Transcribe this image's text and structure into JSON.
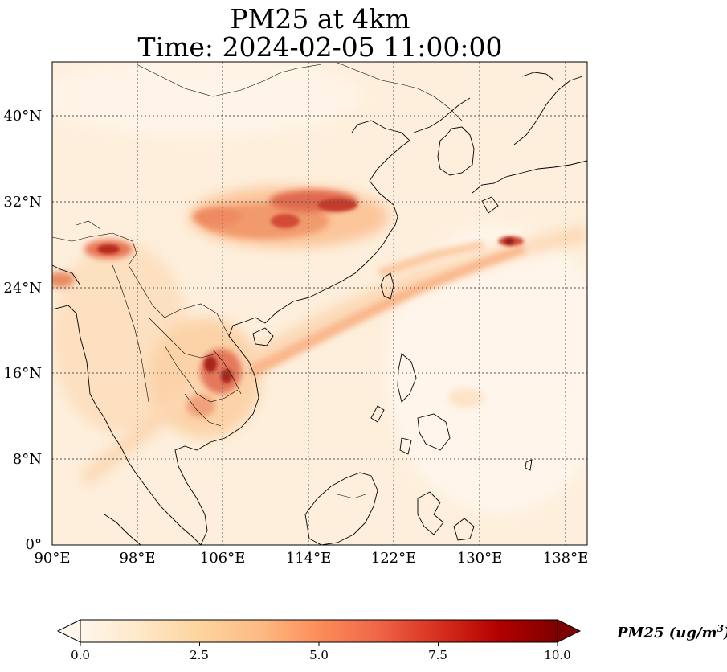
{
  "title": {
    "line1": "PM25 at 4km",
    "line2": "Time: 2024-02-05 11:00:00"
  },
  "map": {
    "lon_range": [
      90,
      140
    ],
    "lat_range": [
      0,
      45
    ],
    "lat_ticks": [
      "40°N",
      "32°N",
      "24°N",
      "16°N",
      "8°N",
      "0°"
    ],
    "lon_ticks": [
      "90°E",
      "98°E",
      "106°E",
      "114°E",
      "122°E",
      "130°E",
      "138°E"
    ],
    "gridlines": "dotted"
  },
  "colorbar": {
    "label": "PM25 (ug/m",
    "label_sup": "3",
    "label_close": ")",
    "ticks": [
      "0.0",
      "2.5",
      "5.0",
      "7.5",
      "10.0"
    ],
    "vmin": 0,
    "vmax": 10,
    "extend": "both",
    "cmap": "OrRd",
    "colors": [
      "#fff7ec",
      "#fee8c8",
      "#fdd49e",
      "#fdbb84",
      "#fc8d59",
      "#ef6548",
      "#d7301f",
      "#b30000",
      "#7f0000"
    ]
  }
}
